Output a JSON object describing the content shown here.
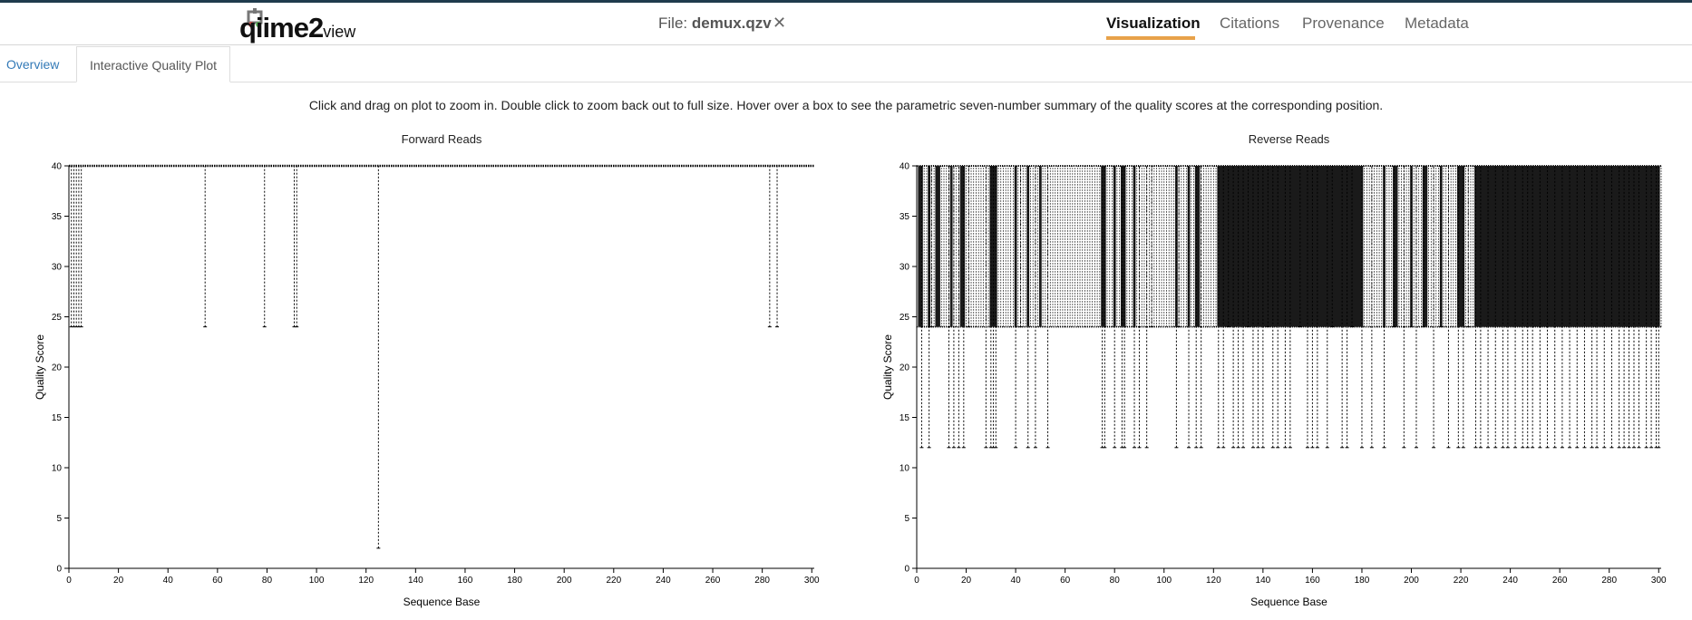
{
  "header": {
    "logo_text": "qiime2",
    "logo_suffix": "view",
    "file_label": "File:",
    "file_name": "demux.qzv",
    "close_glyph": "✕",
    "nav": [
      {
        "label": "Visualization",
        "active": true
      },
      {
        "label": "Citations",
        "active": false
      },
      {
        "label": "Provenance",
        "active": false
      },
      {
        "label": "Metadata",
        "active": false
      }
    ],
    "accent_color": "#e8a24a",
    "topbar_color": "#1f3b4d"
  },
  "tabs": [
    {
      "label": "Overview",
      "active": false
    },
    {
      "label": "Interactive Quality Plot",
      "active": true
    }
  ],
  "instructions": "Click and drag on plot to zoom in. Double click to zoom back out to full size. Hover over a box to see the parametric seven-number summary of the quality scores at the corresponding position.",
  "chart_data": [
    {
      "type": "box",
      "title": "Forward Reads",
      "xlabel": "Sequence Base",
      "ylabel": "Quality Score",
      "xlim": [
        0,
        301
      ],
      "ylim": [
        0,
        40
      ],
      "xticks": [
        0,
        20,
        40,
        60,
        80,
        100,
        120,
        140,
        160,
        180,
        200,
        220,
        240,
        260,
        280,
        300
      ],
      "yticks": [
        0,
        5,
        10,
        15,
        20,
        25,
        30,
        35,
        40
      ],
      "baseline": {
        "x_from": 0,
        "x_to": 301,
        "low": 40,
        "high": 40
      },
      "boxes": [
        {
          "x": 1,
          "low": 24,
          "high": 40
        },
        {
          "x": 2,
          "low": 24,
          "high": 40
        },
        {
          "x": 3,
          "low": 24,
          "high": 40
        },
        {
          "x": 4,
          "low": 24,
          "high": 40
        },
        {
          "x": 5,
          "low": 24,
          "high": 40
        },
        {
          "x": 55,
          "low": 24,
          "high": 40
        },
        {
          "x": 79,
          "low": 24,
          "high": 40
        },
        {
          "x": 91,
          "low": 24,
          "high": 40
        },
        {
          "x": 92,
          "low": 24,
          "high": 40
        },
        {
          "x": 125,
          "low": 2,
          "high": 40
        },
        {
          "x": 283,
          "low": 24,
          "high": 40
        },
        {
          "x": 286,
          "low": 24,
          "high": 40
        }
      ]
    },
    {
      "type": "box",
      "title": "Reverse Reads",
      "xlabel": "Sequence Base",
      "ylabel": "Quality Score",
      "xlim": [
        0,
        301
      ],
      "ylim": [
        0,
        40
      ],
      "xticks": [
        0,
        20,
        40,
        60,
        80,
        100,
        120,
        140,
        160,
        180,
        200,
        220,
        240,
        260,
        280,
        300
      ],
      "yticks": [
        0,
        5,
        10,
        15,
        20,
        25,
        30,
        35,
        40
      ],
      "band": {
        "x_from": 0,
        "x_to": 301,
        "low": 24,
        "high": 40
      },
      "boxes": [
        {
          "x": 2,
          "low": 12,
          "high": 40
        },
        {
          "x": 5,
          "low": 12,
          "high": 40
        },
        {
          "x": 6,
          "low": 24,
          "high": 40
        },
        {
          "x": 13,
          "low": 12,
          "high": 40
        },
        {
          "x": 15,
          "low": 12,
          "high": 40
        },
        {
          "x": 17,
          "low": 12,
          "high": 40
        },
        {
          "x": 19,
          "low": 12,
          "high": 40
        },
        {
          "x": 21,
          "low": 24,
          "high": 40
        },
        {
          "x": 28,
          "low": 12,
          "high": 40
        },
        {
          "x": 30,
          "low": 12,
          "high": 40
        },
        {
          "x": 31,
          "low": 12,
          "high": 40
        },
        {
          "x": 32,
          "low": 12,
          "high": 40
        },
        {
          "x": 40,
          "low": 12,
          "high": 40
        },
        {
          "x": 42,
          "low": 24,
          "high": 40
        },
        {
          "x": 45,
          "low": 12,
          "high": 40
        },
        {
          "x": 48,
          "low": 12,
          "high": 40
        },
        {
          "x": 53,
          "low": 12,
          "high": 40
        },
        {
          "x": 75,
          "low": 12,
          "high": 40
        },
        {
          "x": 76,
          "low": 12,
          "high": 40
        },
        {
          "x": 80,
          "low": 12,
          "high": 40
        },
        {
          "x": 83,
          "low": 12,
          "high": 40
        },
        {
          "x": 84,
          "low": 12,
          "high": 40
        },
        {
          "x": 88,
          "low": 12,
          "high": 40
        },
        {
          "x": 90,
          "low": 12,
          "high": 40
        },
        {
          "x": 93,
          "low": 12,
          "high": 40
        },
        {
          "x": 95,
          "low": 24,
          "high": 40
        },
        {
          "x": 105,
          "low": 12,
          "high": 40
        },
        {
          "x": 106,
          "low": 24,
          "high": 40
        },
        {
          "x": 110,
          "low": 12,
          "high": 40
        },
        {
          "x": 113,
          "low": 12,
          "high": 40
        },
        {
          "x": 115,
          "low": 12,
          "high": 40
        },
        {
          "x": 122,
          "low": 12,
          "high": 40
        },
        {
          "x": 124,
          "low": 12,
          "high": 40
        },
        {
          "x": 126,
          "low": 24,
          "high": 40
        },
        {
          "x": 128,
          "low": 12,
          "high": 40
        },
        {
          "x": 130,
          "low": 12,
          "high": 40
        },
        {
          "x": 132,
          "low": 12,
          "high": 40
        },
        {
          "x": 134,
          "low": 24,
          "high": 40
        },
        {
          "x": 136,
          "low": 12,
          "high": 40
        },
        {
          "x": 138,
          "low": 12,
          "high": 40
        },
        {
          "x": 140,
          "low": 12,
          "high": 40
        },
        {
          "x": 142,
          "low": 24,
          "high": 40
        },
        {
          "x": 144,
          "low": 12,
          "high": 40
        },
        {
          "x": 146,
          "low": 12,
          "high": 40
        },
        {
          "x": 149,
          "low": 12,
          "high": 40
        },
        {
          "x": 151,
          "low": 12,
          "high": 40
        },
        {
          "x": 155,
          "low": 24,
          "high": 40
        },
        {
          "x": 158,
          "low": 12,
          "high": 40
        },
        {
          "x": 160,
          "low": 12,
          "high": 40
        },
        {
          "x": 162,
          "low": 12,
          "high": 40
        },
        {
          "x": 166,
          "low": 12,
          "high": 40
        },
        {
          "x": 168,
          "low": 24,
          "high": 40
        },
        {
          "x": 172,
          "low": 12,
          "high": 40
        },
        {
          "x": 174,
          "low": 12,
          "high": 40
        },
        {
          "x": 176,
          "low": 24,
          "high": 40
        },
        {
          "x": 180,
          "low": 12,
          "high": 40
        },
        {
          "x": 184,
          "low": 12,
          "high": 40
        },
        {
          "x": 189,
          "low": 12,
          "high": 40
        },
        {
          "x": 193,
          "low": 24,
          "high": 40
        },
        {
          "x": 197,
          "low": 12,
          "high": 40
        },
        {
          "x": 200,
          "low": 24,
          "high": 40
        },
        {
          "x": 202,
          "low": 12,
          "high": 40
        },
        {
          "x": 205,
          "low": 24,
          "high": 40
        },
        {
          "x": 209,
          "low": 12,
          "high": 40
        },
        {
          "x": 212,
          "low": 24,
          "high": 40
        },
        {
          "x": 215,
          "low": 12,
          "high": 40
        },
        {
          "x": 219,
          "low": 12,
          "high": 40
        },
        {
          "x": 221,
          "low": 12,
          "high": 40
        },
        {
          "x": 223,
          "low": 24,
          "high": 40
        },
        {
          "x": 226,
          "low": 12,
          "high": 40
        },
        {
          "x": 228,
          "low": 12,
          "high": 40
        },
        {
          "x": 231,
          "low": 12,
          "high": 40
        },
        {
          "x": 234,
          "low": 12,
          "high": 40
        },
        {
          "x": 237,
          "low": 12,
          "high": 40
        },
        {
          "x": 239,
          "low": 12,
          "high": 40
        },
        {
          "x": 242,
          "low": 12,
          "high": 40
        },
        {
          "x": 245,
          "low": 12,
          "high": 40
        },
        {
          "x": 247,
          "low": 12,
          "high": 40
        },
        {
          "x": 249,
          "low": 12,
          "high": 40
        },
        {
          "x": 252,
          "low": 12,
          "high": 40
        },
        {
          "x": 255,
          "low": 12,
          "high": 40
        },
        {
          "x": 258,
          "low": 12,
          "high": 40
        },
        {
          "x": 261,
          "low": 12,
          "high": 40
        },
        {
          "x": 264,
          "low": 12,
          "high": 40
        },
        {
          "x": 267,
          "low": 12,
          "high": 40
        },
        {
          "x": 270,
          "low": 12,
          "high": 40
        },
        {
          "x": 273,
          "low": 12,
          "high": 40
        },
        {
          "x": 275,
          "low": 12,
          "high": 40
        },
        {
          "x": 278,
          "low": 12,
          "high": 40
        },
        {
          "x": 281,
          "low": 12,
          "high": 40
        },
        {
          "x": 284,
          "low": 12,
          "high": 40
        },
        {
          "x": 286,
          "low": 12,
          "high": 40
        },
        {
          "x": 288,
          "low": 12,
          "high": 40
        },
        {
          "x": 290,
          "low": 12,
          "high": 40
        },
        {
          "x": 292,
          "low": 12,
          "high": 40
        },
        {
          "x": 295,
          "low": 12,
          "high": 40
        },
        {
          "x": 297,
          "low": 12,
          "high": 40
        },
        {
          "x": 299,
          "low": 12,
          "high": 40
        },
        {
          "x": 300,
          "low": 12,
          "high": 40
        }
      ],
      "solid_ranges": [
        [
          1,
          2
        ],
        [
          5,
          5
        ],
        [
          8,
          9
        ],
        [
          14,
          14
        ],
        [
          18,
          19
        ],
        [
          30,
          32
        ],
        [
          40,
          40
        ],
        [
          45,
          45
        ],
        [
          50,
          50
        ],
        [
          75,
          76
        ],
        [
          80,
          80
        ],
        [
          83,
          84
        ],
        [
          88,
          88
        ],
        [
          105,
          105
        ],
        [
          110,
          110
        ],
        [
          113,
          114
        ],
        [
          122,
          180
        ],
        [
          189,
          189
        ],
        [
          193,
          194
        ],
        [
          200,
          200
        ],
        [
          205,
          206
        ],
        [
          212,
          212
        ],
        [
          219,
          221
        ],
        [
          226,
          300
        ]
      ]
    }
  ]
}
